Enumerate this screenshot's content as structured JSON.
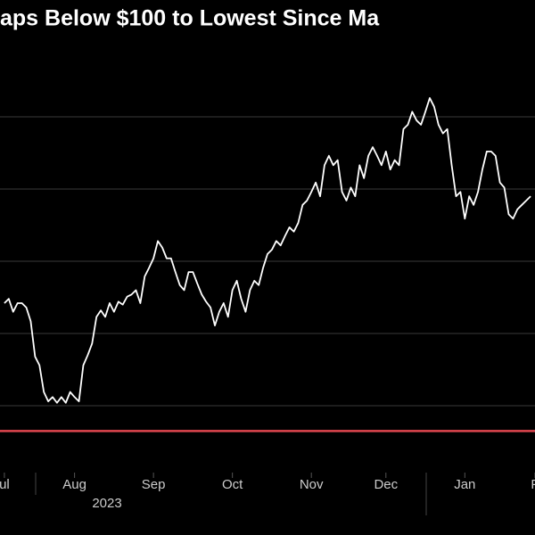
{
  "chart_data": {
    "type": "line",
    "title": "aps Below $100 to Lowest Since Ma",
    "year_label": "2023",
    "color": "#ffffff",
    "values": [
      124.2,
      124.8,
      123.0,
      124.2,
      124.2,
      123.6,
      121.7,
      116.8,
      115.6,
      111.9,
      110.6,
      111.2,
      110.4,
      111.2,
      110.4,
      111.9,
      111.2,
      110.6,
      115.6,
      117.0,
      118.6,
      122.3,
      123.2,
      122.3,
      124.2,
      123.0,
      124.4,
      124.0,
      125.1,
      125.4,
      126.0,
      124.2,
      127.9,
      129.1,
      130.4,
      132.8,
      131.9,
      130.4,
      130.4,
      128.5,
      126.7,
      126.0,
      128.5,
      128.5,
      126.9,
      125.4,
      124.4,
      123.6,
      121.1,
      123.0,
      124.2,
      122.3,
      126.0,
      127.3,
      124.8,
      123.0,
      126.0,
      127.3,
      126.7,
      129.1,
      131.0,
      131.6,
      132.8,
      132.2,
      133.5,
      134.7,
      134.1,
      135.3,
      137.8,
      138.4,
      139.6,
      140.9,
      139.0,
      143.3,
      144.6,
      143.3,
      144.0,
      139.6,
      138.4,
      140.2,
      139.0,
      143.3,
      141.5,
      144.6,
      145.8,
      144.6,
      143.3,
      145.2,
      142.7,
      144.0,
      143.3,
      148.3,
      148.9,
      150.7,
      149.5,
      148.9,
      150.7,
      152.6,
      151.4,
      148.9,
      147.7,
      148.3,
      143.3,
      139.0,
      139.6,
      135.9,
      139.0,
      137.8,
      139.6,
      142.7,
      145.2,
      145.2,
      144.6,
      140.9,
      140.2,
      136.5,
      135.9,
      137.2,
      137.8,
      138.4,
      139.0
    ],
    "xlim": [
      -1,
      121
    ],
    "xticks": [
      {
        "value": 0,
        "label": "ul"
      },
      {
        "value": 16,
        "label": "Aug"
      },
      {
        "value": 34,
        "label": "Sep"
      },
      {
        "value": 52,
        "label": "Oct"
      },
      {
        "value": 70,
        "label": "Nov"
      },
      {
        "value": 87,
        "label": "Dec"
      },
      {
        "value": 105,
        "label": "Jan"
      },
      {
        "value": 121,
        "label": "F"
      }
    ],
    "ylim": [
      100,
      160
    ],
    "yticks": [
      110,
      120,
      130,
      140,
      150
    ],
    "grid": true,
    "reference_line": {
      "value": 106.5,
      "color": "#e0464f"
    }
  }
}
